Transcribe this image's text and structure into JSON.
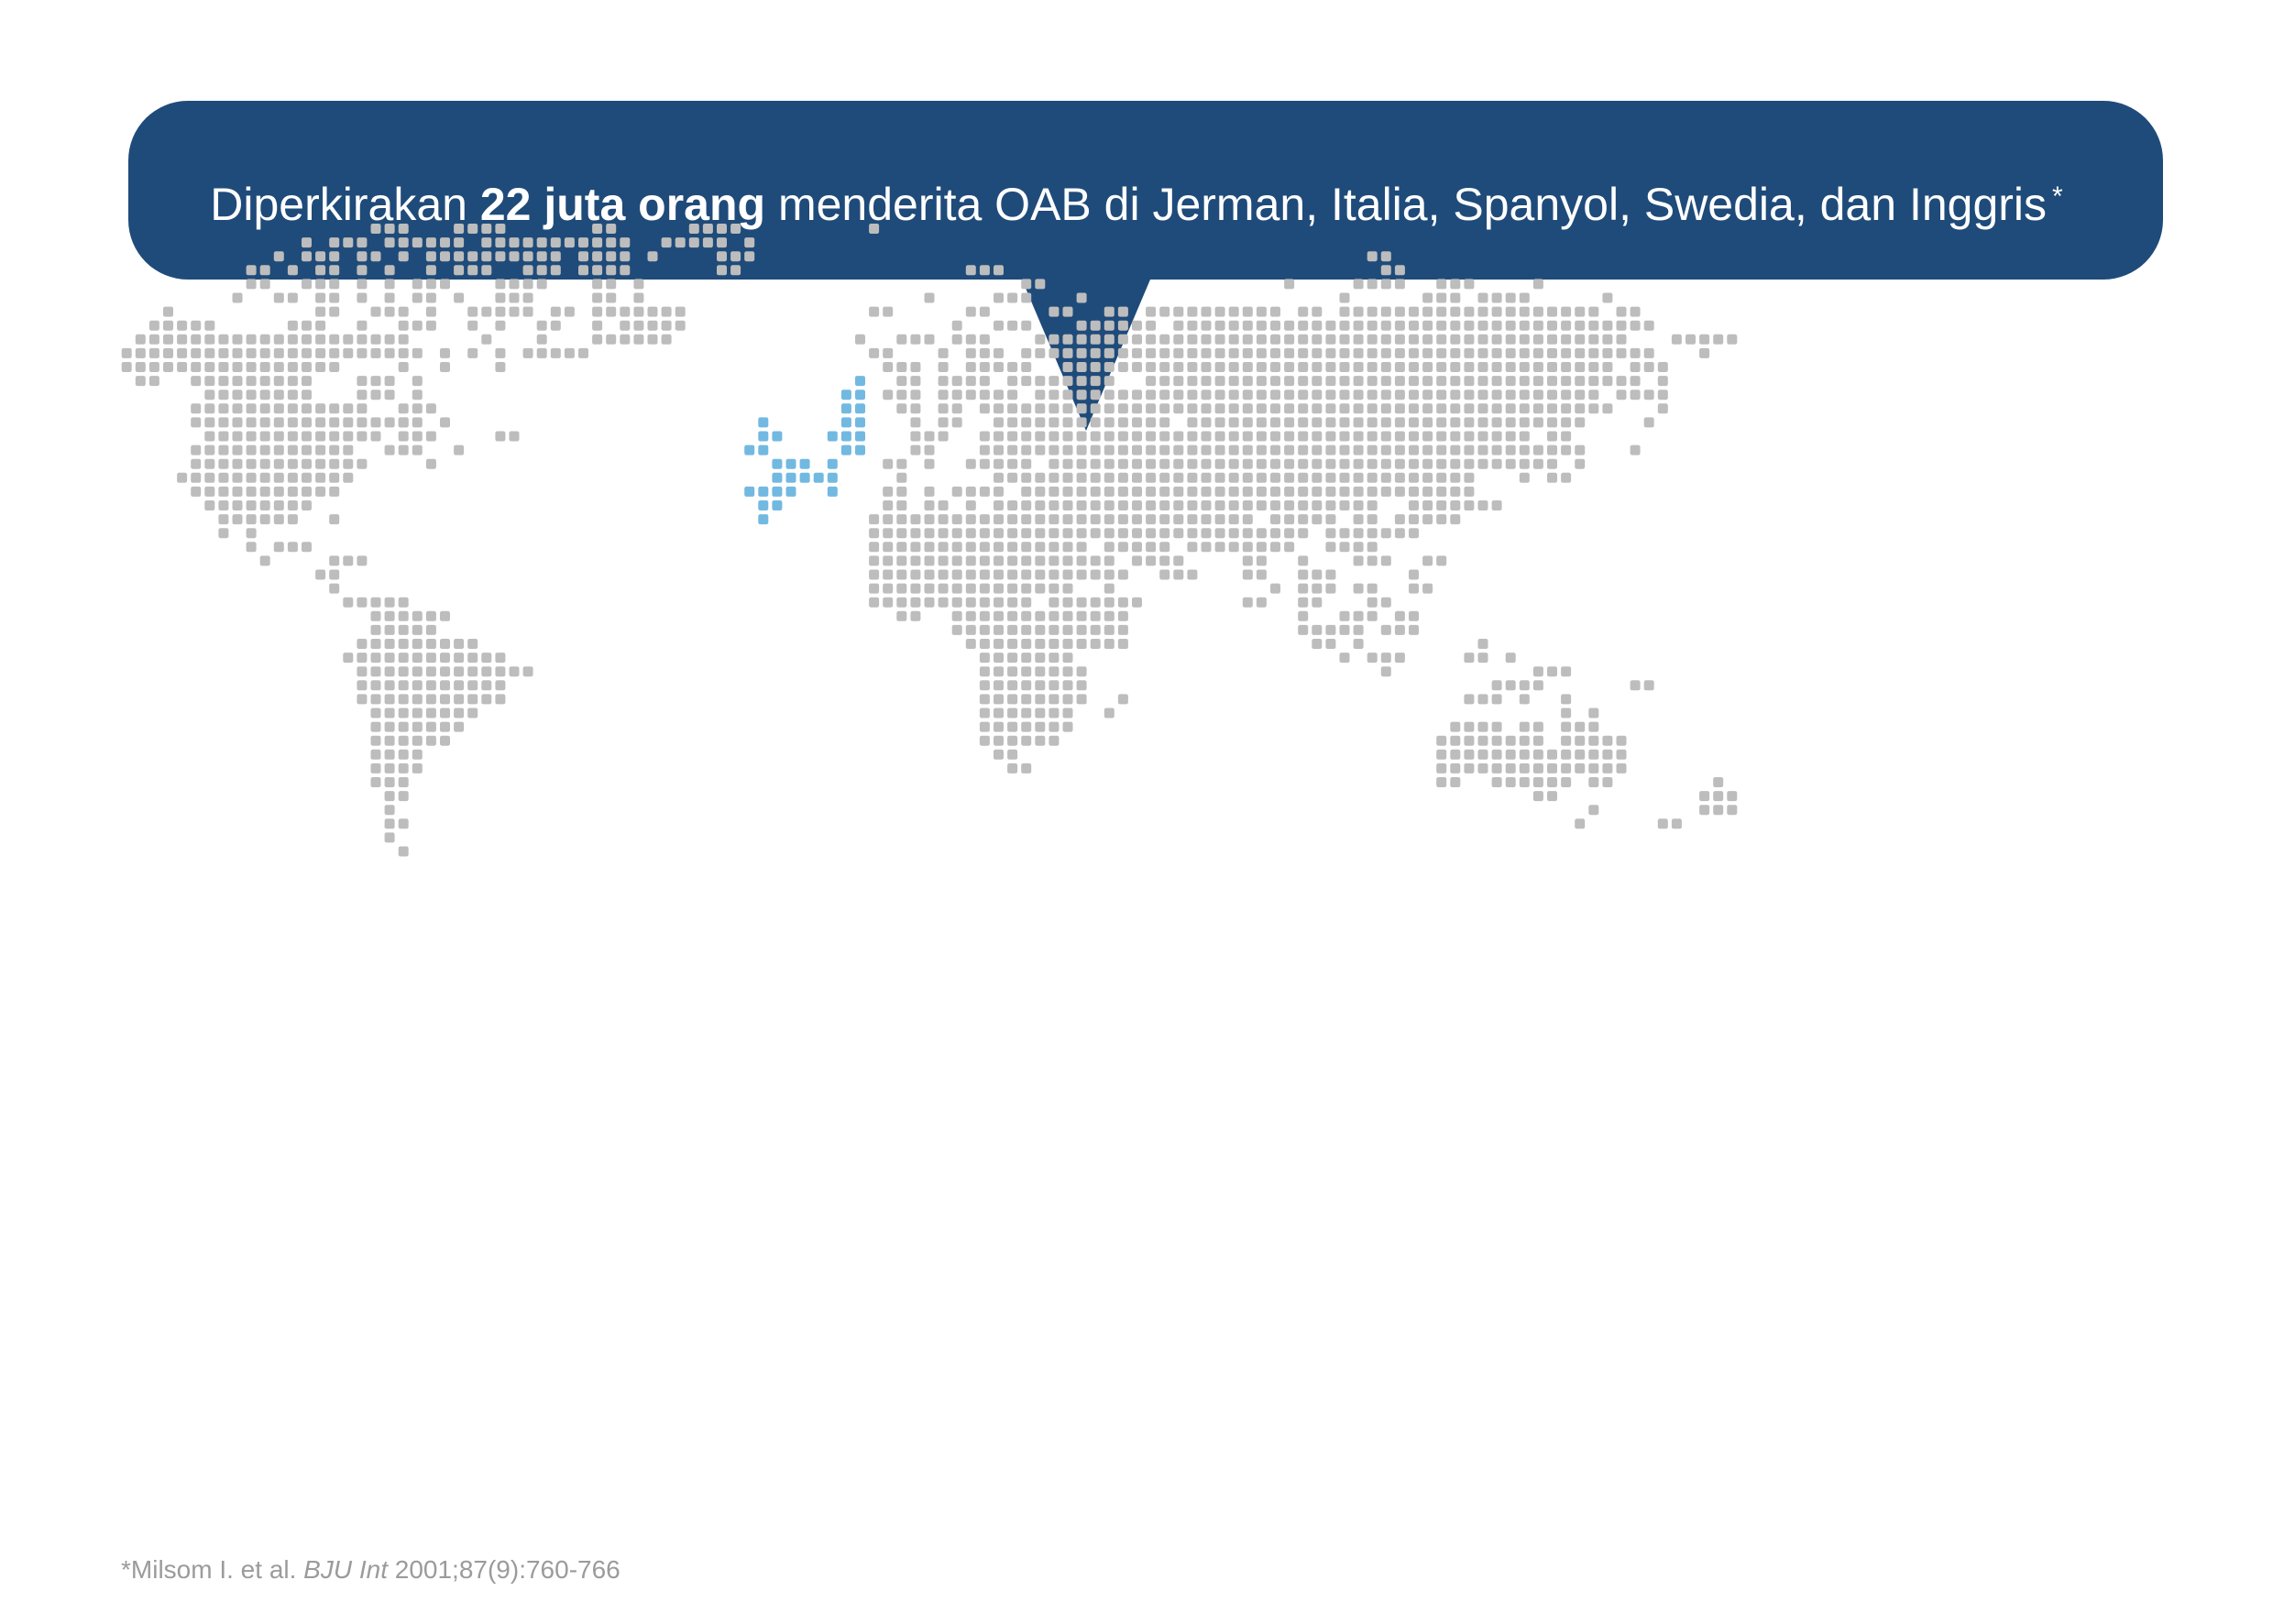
{
  "callout": {
    "prefix": "Diperkirakan",
    "emphasis": "22 juta orang",
    "suffix": "menderita OAB di Jerman, Italia, Spanyol, Swedia, dan Inggris",
    "marker": "*",
    "background_color": "#1f4b7a",
    "text_color": "#ffffff"
  },
  "map": {
    "land_dot_color": "#bdbdbd",
    "highlight_dot_color": "#72b9e2",
    "highlighted_countries": [
      "Jerman",
      "Italia",
      "Spanyol",
      "Swedia",
      "Inggris"
    ]
  },
  "footnote": {
    "marker": "*",
    "authors": "Milsom I. et al.",
    "journal": "BJU Int",
    "citation": "2001;87(9):760-766"
  }
}
